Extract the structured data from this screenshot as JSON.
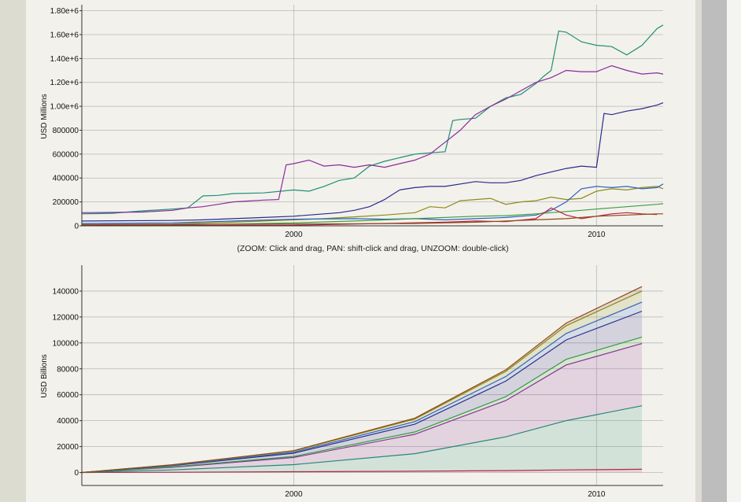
{
  "colors": {
    "teal": "#1f8f74",
    "purple": "#8a2b9a",
    "navy": "#2a2a8c",
    "olive": "#8c8c14",
    "green": "#3aa040",
    "brown": "#8c4a18",
    "blue": "#2f62c0",
    "crimson": "#b8244a",
    "grid": "#b8b8b8"
  },
  "icons": {
    "scrollbar": "scrollbar-track"
  },
  "chart_data": [
    {
      "type": "line",
      "ylabel": "USD Millions",
      "xlabel": "(ZOOM: Click and drag, PAN: shift-click and drag, UNZOOM: double-click)",
      "xlim": [
        1993,
        2012.2
      ],
      "ylim": [
        0,
        1850000
      ],
      "x_ticks": [
        "2000",
        "2010"
      ],
      "y_ticks": [
        {
          "v": 0,
          "label": "0"
        },
        {
          "v": 200000,
          "label": "200000"
        },
        {
          "v": 400000,
          "label": "400000"
        },
        {
          "v": 600000,
          "label": "600000"
        },
        {
          "v": 800000,
          "label": "800000"
        },
        {
          "v": 1000000,
          "label": "1.00e+6"
        },
        {
          "v": 1200000,
          "label": "1.20e+6"
        },
        {
          "v": 1400000,
          "label": "1.40e+6"
        },
        {
          "v": 1600000,
          "label": "1.60e+6"
        },
        {
          "v": 1800000,
          "label": "1.80e+6"
        }
      ],
      "grid": true,
      "series": [
        {
          "color": "teal",
          "x": [
            1993,
            1994,
            1995,
            1996,
            1996.5,
            1997,
            1997.5,
            1998,
            1999,
            2000,
            2000.5,
            2001,
            2001.5,
            2002,
            2002.5,
            2003,
            2003.5,
            2004,
            2004.5,
            2005,
            2005.25,
            2005.5,
            2006,
            2006.5,
            2007,
            2007.5,
            2008,
            2008.25,
            2008.5,
            2008.75,
            2009,
            2009.5,
            2010,
            2010.5,
            2011,
            2011.5,
            2012,
            2012.2
          ],
          "values": [
            100000,
            105000,
            125000,
            140000,
            150000,
            250000,
            255000,
            270000,
            275000,
            300000,
            290000,
            330000,
            380000,
            400000,
            500000,
            540000,
            570000,
            600000,
            610000,
            620000,
            880000,
            890000,
            900000,
            1000000,
            1070000,
            1100000,
            1190000,
            1250000,
            1300000,
            1630000,
            1620000,
            1540000,
            1510000,
            1500000,
            1430000,
            1510000,
            1650000,
            1680000
          ]
        },
        {
          "color": "purple",
          "x": [
            1993,
            1995,
            1996,
            1996.5,
            1997,
            1997.5,
            1998,
            1999,
            1999.5,
            1999.75,
            2000,
            2000.5,
            2001,
            2001.5,
            2002,
            2002.5,
            2003,
            2003.5,
            2004,
            2004.5,
            2005,
            2005.5,
            2006,
            2006.5,
            2007,
            2007.5,
            2008,
            2008.5,
            2009,
            2009.5,
            2010,
            2010.5,
            2011,
            2011.5,
            2012,
            2012.2
          ],
          "values": [
            110000,
            115000,
            130000,
            150000,
            160000,
            180000,
            200000,
            215000,
            220000,
            510000,
            520000,
            550000,
            500000,
            510000,
            490000,
            510000,
            490000,
            520000,
            550000,
            600000,
            700000,
            800000,
            930000,
            1000000,
            1060000,
            1130000,
            1200000,
            1240000,
            1300000,
            1290000,
            1290000,
            1340000,
            1300000,
            1270000,
            1280000,
            1270000
          ]
        },
        {
          "color": "navy",
          "x": [
            1993,
            1996,
            1997,
            1998,
            1999,
            2000,
            2001,
            2001.5,
            2002,
            2002.5,
            2003,
            2003.5,
            2004,
            2004.5,
            2005,
            2006,
            2006.5,
            2007,
            2007.5,
            2008,
            2008.5,
            2009,
            2009.5,
            2010,
            2010.25,
            2010.5,
            2011,
            2011.5,
            2012,
            2012.2
          ],
          "values": [
            40000,
            45000,
            50000,
            60000,
            70000,
            80000,
            100000,
            110000,
            130000,
            160000,
            220000,
            300000,
            320000,
            330000,
            330000,
            370000,
            360000,
            360000,
            380000,
            420000,
            450000,
            480000,
            500000,
            490000,
            940000,
            930000,
            960000,
            980000,
            1010000,
            1030000
          ]
        },
        {
          "color": "olive",
          "x": [
            1993,
            1996,
            1998,
            2000,
            2001,
            2002,
            2003,
            2003.5,
            2004,
            2004.5,
            2005,
            2005.5,
            2006,
            2006.5,
            2007,
            2007.5,
            2008,
            2008.5,
            2009,
            2009.5,
            2010,
            2010.5,
            2011,
            2011.5,
            2012,
            2012.2
          ],
          "values": [
            10000,
            15000,
            30000,
            50000,
            60000,
            75000,
            90000,
            100000,
            110000,
            160000,
            150000,
            210000,
            220000,
            230000,
            180000,
            200000,
            210000,
            240000,
            220000,
            230000,
            290000,
            310000,
            300000,
            320000,
            330000,
            310000
          ]
        },
        {
          "color": "blue",
          "x": [
            1993,
            1996,
            1998,
            2000,
            2002,
            2003,
            2004,
            2005,
            2006,
            2007,
            2008,
            2008.5,
            2009,
            2009.5,
            2010,
            2010.5,
            2011,
            2011.5,
            2012,
            2012.2
          ],
          "values": [
            20000,
            25000,
            40000,
            55000,
            60000,
            55000,
            60000,
            50000,
            60000,
            70000,
            90000,
            130000,
            200000,
            310000,
            330000,
            320000,
            330000,
            310000,
            320000,
            350000
          ]
        },
        {
          "color": "green",
          "x": [
            1993,
            1996,
            1998,
            2000,
            2002,
            2004,
            2006,
            2007,
            2008,
            2008.5,
            2009,
            2009.5,
            2010,
            2010.5,
            2011,
            2011.5,
            2012,
            2012.2
          ],
          "values": [
            5000,
            8000,
            15000,
            25000,
            40000,
            60000,
            80000,
            85000,
            100000,
            110000,
            120000,
            130000,
            140000,
            150000,
            160000,
            170000,
            180000,
            185000
          ]
        },
        {
          "color": "crimson",
          "x": [
            1993,
            1996,
            2000,
            2003,
            2005,
            2006,
            2007,
            2008,
            2008.5,
            2009,
            2009.5,
            2010,
            2010.5,
            2011,
            2011.5,
            2012
          ],
          "values": [
            2000,
            3000,
            5000,
            20000,
            30000,
            40000,
            35000,
            60000,
            150000,
            90000,
            60000,
            80000,
            100000,
            110000,
            100000,
            95000
          ]
        },
        {
          "color": "brown",
          "x": [
            1993,
            1996,
            2000,
            2004,
            2006,
            2008,
            2009,
            2010,
            2011,
            2012,
            2012.2
          ],
          "values": [
            10000,
            12000,
            15000,
            20000,
            30000,
            50000,
            60000,
            80000,
            90000,
            100000,
            100000
          ]
        }
      ]
    },
    {
      "type": "area",
      "stacked": true,
      "ylabel": "USD Billions",
      "xlim": [
        1993,
        2012.2
      ],
      "ylim": [
        -10000,
        160000
      ],
      "x_ticks": [
        "2000",
        "2010"
      ],
      "y_ticks": [
        {
          "v": 0,
          "label": "0"
        },
        {
          "v": 20000,
          "label": "20000"
        },
        {
          "v": 40000,
          "label": "40000"
        },
        {
          "v": 60000,
          "label": "60000"
        },
        {
          "v": 80000,
          "label": "80000"
        },
        {
          "v": 100000,
          "label": "100000"
        },
        {
          "v": 120000,
          "label": "120000"
        },
        {
          "v": 140000,
          "label": "140000"
        }
      ],
      "grid": true,
      "x": [
        1993,
        1996,
        2000,
        2004,
        2007,
        2009,
        2011.5
      ],
      "series": [
        {
          "color": "crimson",
          "values": [
            0,
            200,
            600,
            1000,
            1500,
            2000,
            2500
          ]
        },
        {
          "color": "teal",
          "values": [
            0,
            1800,
            5500,
            13500,
            26000,
            38000,
            49000
          ]
        },
        {
          "color": "purple",
          "values": [
            0,
            2000,
            5500,
            15000,
            28000,
            43000,
            48000
          ]
        },
        {
          "color": "green",
          "values": [
            0,
            300,
            800,
            1800,
            3000,
            4300,
            5000
          ]
        },
        {
          "color": "navy",
          "values": [
            0,
            1000,
            2500,
            6000,
            12000,
            15000,
            20000
          ]
        },
        {
          "color": "blue",
          "values": [
            0,
            300,
            800,
            2000,
            3500,
            5000,
            7000
          ]
        },
        {
          "color": "olive",
          "values": [
            0,
            300,
            900,
            2000,
            4000,
            6000,
            8500
          ]
        },
        {
          "color": "brown",
          "values": [
            0,
            100,
            300,
            700,
            1200,
            2000,
            3500
          ]
        }
      ]
    }
  ]
}
